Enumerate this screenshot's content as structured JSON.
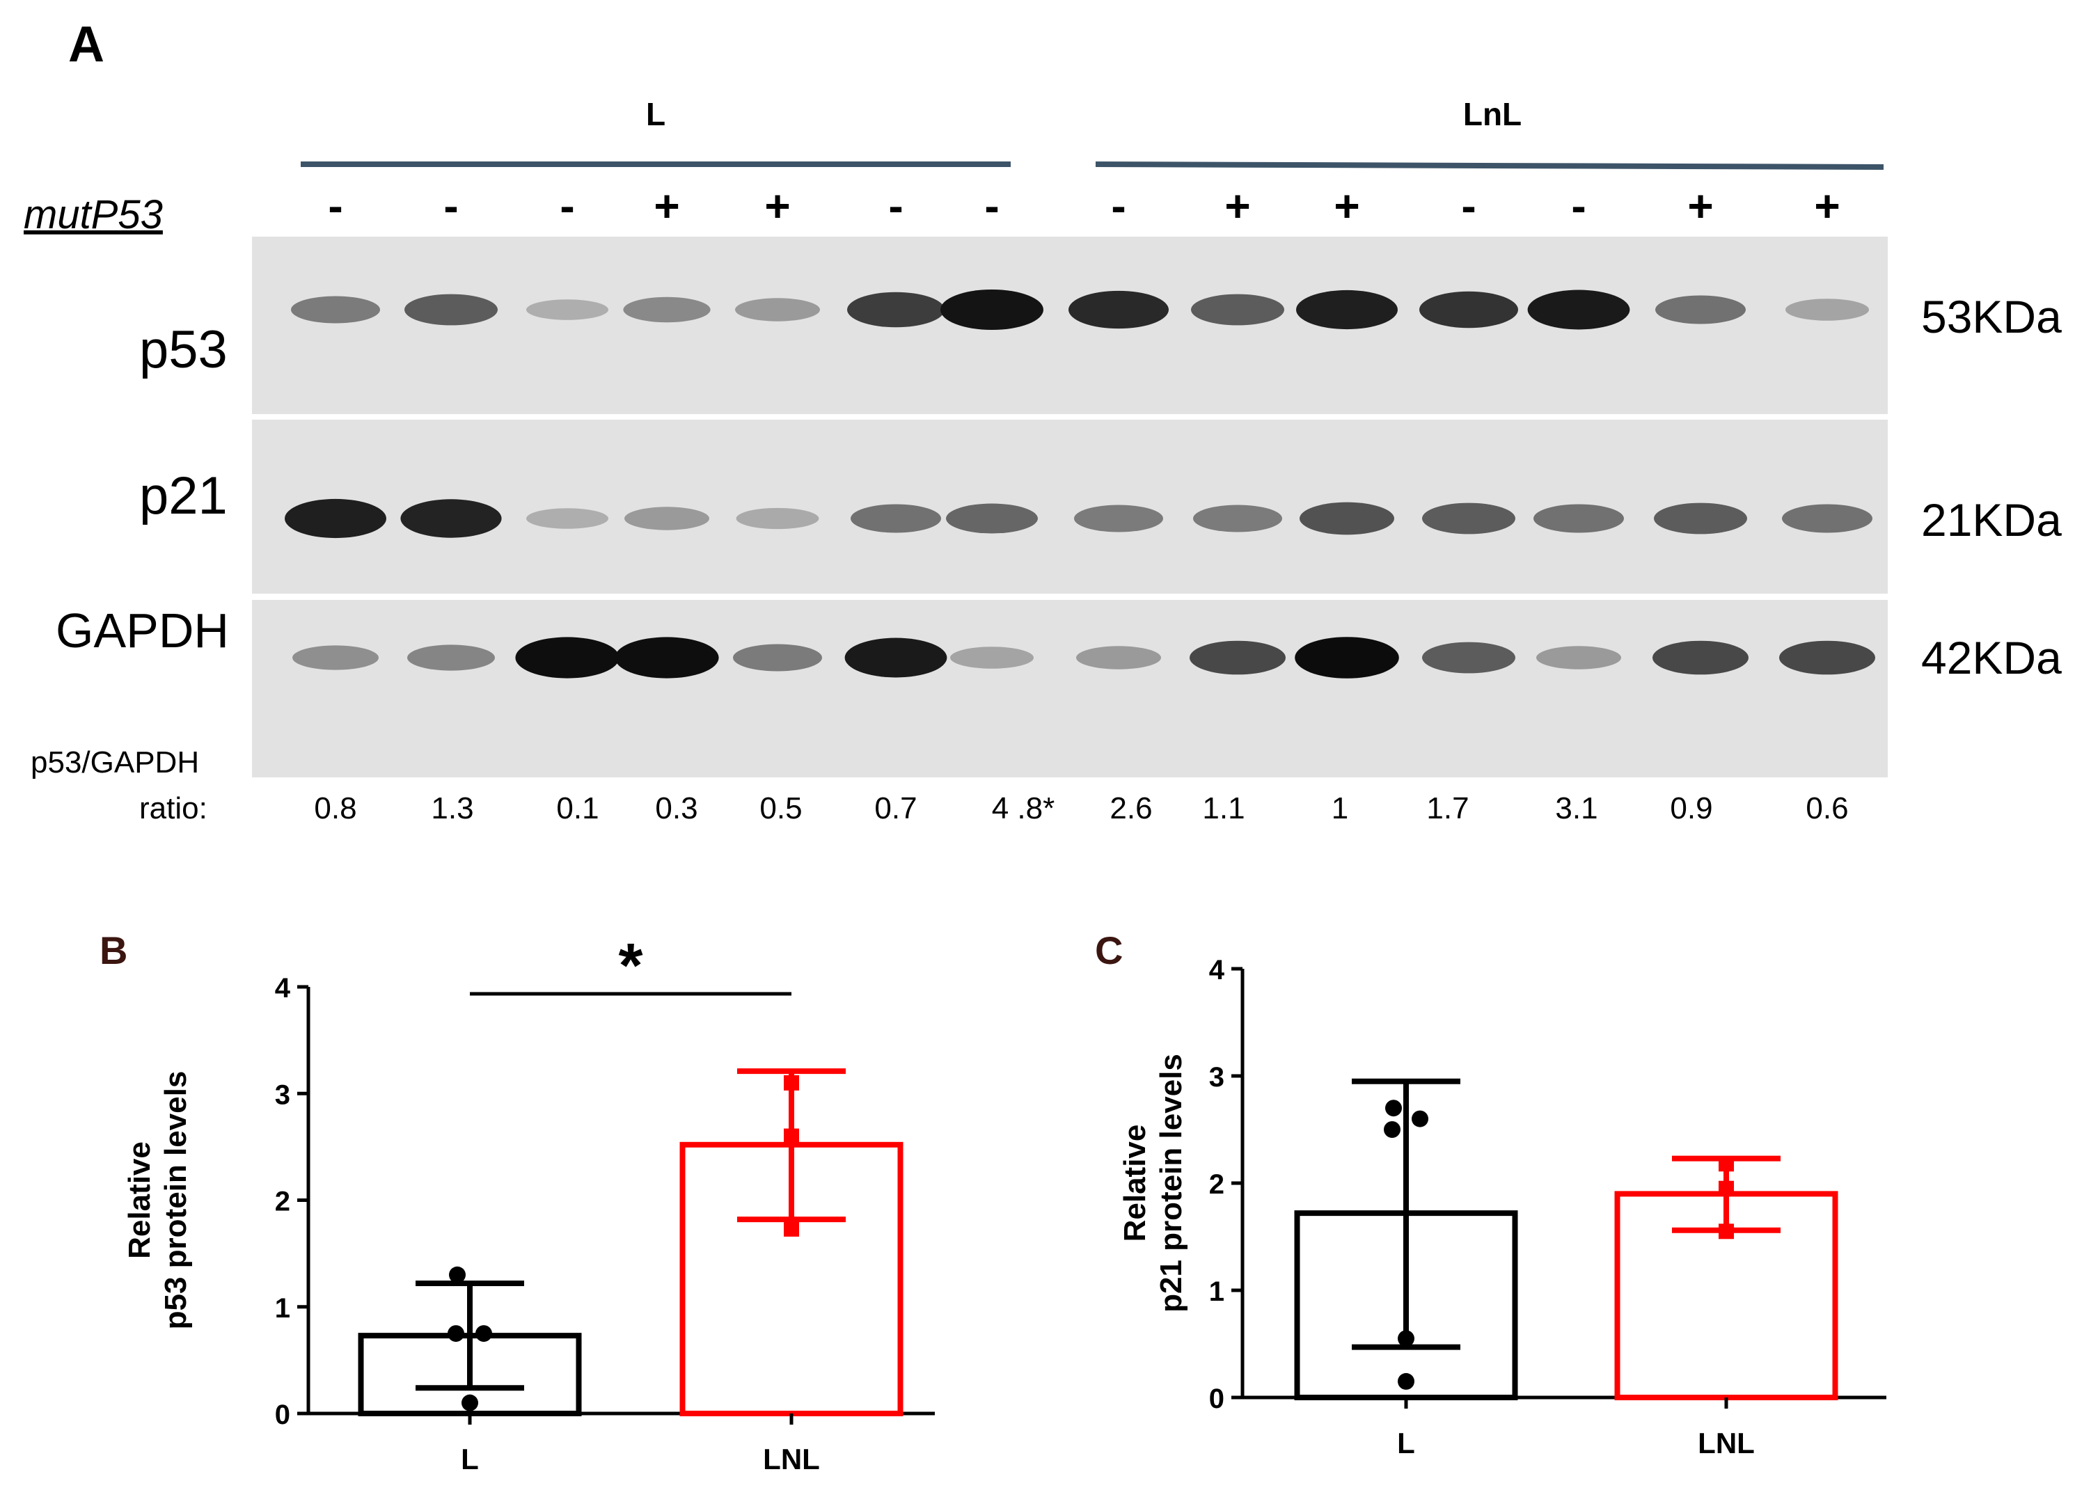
{
  "panel_a": {
    "panel_label": "A",
    "groups": [
      {
        "name": "L",
        "color": "#3d5468"
      },
      {
        "name": "LnL",
        "color": "#3d5468"
      }
    ],
    "mut_label": "mutP53",
    "mut_signs": [
      "-",
      "-",
      "-",
      "+",
      "+",
      "-",
      "-",
      "-",
      "+",
      "+",
      "-",
      "-",
      "+",
      "+"
    ],
    "blots": [
      {
        "label": "p53",
        "kda": "53KDa",
        "intensity": [
          0.45,
          0.6,
          0.2,
          0.38,
          0.3,
          0.75,
          0.95,
          0.85,
          0.6,
          0.9,
          0.8,
          0.92,
          0.5,
          0.25
        ]
      },
      {
        "label": "p21",
        "kda": "21KDa",
        "intensity": [
          0.9,
          0.88,
          0.2,
          0.3,
          0.22,
          0.5,
          0.55,
          0.45,
          0.45,
          0.65,
          0.6,
          0.5,
          0.6,
          0.5
        ]
      },
      {
        "label": "GAPDH",
        "kda": "42KDa",
        "intensity": [
          0.35,
          0.4,
          0.98,
          0.98,
          0.45,
          0.92,
          0.25,
          0.3,
          0.7,
          0.99,
          0.6,
          0.3,
          0.7,
          0.7
        ]
      }
    ],
    "ratio_label_1": "p53/GAPDH",
    "ratio_label_2": "ratio:",
    "ratios": [
      "0.8",
      "1.3",
      "0.1",
      "0.3",
      "0.5",
      "0.7",
      "4 .8*",
      "2.6",
      "1.1",
      "1",
      "1.7",
      "3.1",
      "0.9",
      "0.6"
    ]
  },
  "chart_data": [
    {
      "panel_label": "B",
      "type": "bar",
      "categories": [
        "L",
        "LNL"
      ],
      "ylabel_line1": "Relative",
      "ylabel_line2": "p53 protein levels",
      "ylim": [
        0,
        4
      ],
      "yticks": [
        "0",
        "1",
        "2",
        "3",
        "4"
      ],
      "bars": [
        {
          "category": "L",
          "mean": 0.73,
          "sd_low": 0.24,
          "sd_high": 1.22,
          "color": "#000000",
          "points": [
            1.3,
            0.75,
            0.75,
            0.1
          ],
          "marker": "circle"
        },
        {
          "category": "LNL",
          "mean": 2.52,
          "sd_low": 1.82,
          "sd_high": 3.21,
          "color": "#ff0000",
          "points": [
            3.1,
            2.6,
            1.73
          ],
          "marker": "square"
        }
      ],
      "significance": "*"
    },
    {
      "panel_label": "C",
      "type": "bar",
      "categories": [
        "L",
        "LNL"
      ],
      "ylabel_line1": "Relative",
      "ylabel_line2": "p21 protein levels",
      "ylim": [
        0,
        4
      ],
      "yticks": [
        "0",
        "1",
        "2",
        "3",
        "4"
      ],
      "bars": [
        {
          "category": "L",
          "mean": 1.72,
          "sd_low": 0.47,
          "sd_high": 2.95,
          "color": "#000000",
          "points": [
            2.7,
            2.5,
            2.6,
            0.55,
            0.15
          ],
          "marker": "circle"
        },
        {
          "category": "LNL",
          "mean": 1.9,
          "sd_low": 1.56,
          "sd_high": 2.23,
          "color": "#ff0000",
          "points": [
            2.18,
            1.95,
            1.55
          ],
          "marker": "square"
        }
      ]
    }
  ]
}
